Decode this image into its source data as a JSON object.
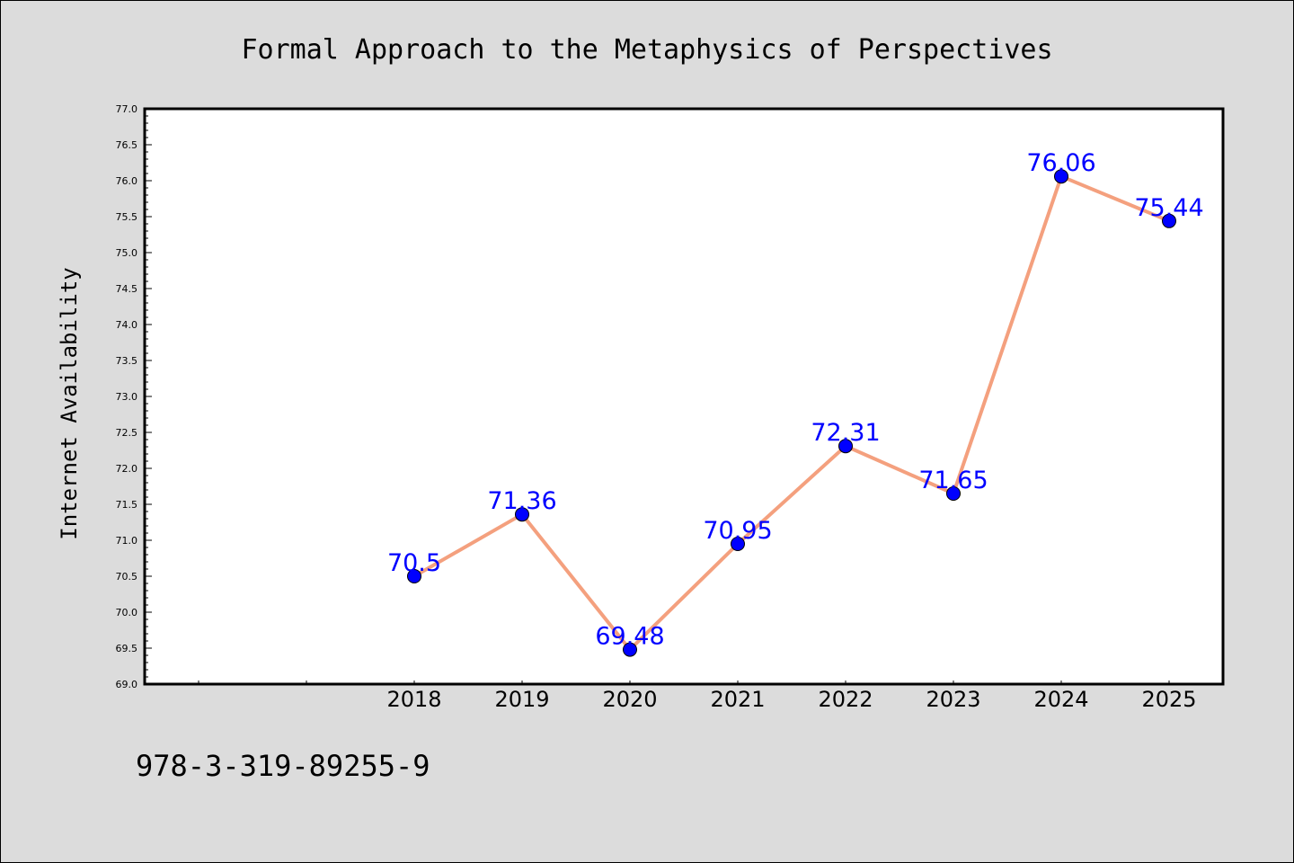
{
  "chart_data": {
    "type": "line",
    "title": "Formal Approach to the Metaphysics of Perspectives",
    "xlabel": "",
    "ylabel": "Internet Availability",
    "categories": [
      "2018",
      "2019",
      "2020",
      "2021",
      "2022",
      "2023",
      "2024",
      "2025"
    ],
    "series": [
      {
        "values": [
          70.5,
          71.36,
          69.48,
          70.95,
          72.31,
          71.65,
          76.06,
          75.44
        ]
      }
    ],
    "data_labels": [
      "70.5",
      "71.36",
      "69.48",
      "70.95",
      "72.31",
      "71.65",
      "76.06",
      "75.44"
    ],
    "ylim": [
      69.0,
      77.0
    ],
    "yticks": [
      "69.0",
      "69.5",
      "70.0",
      "70.5",
      "71.0",
      "71.5",
      "72.0",
      "72.5",
      "73.0",
      "73.5",
      "74.0",
      "74.5",
      "75.0",
      "75.5",
      "76.0",
      "76.5",
      "77.0"
    ],
    "grid": false,
    "legend": "none",
    "colors": {
      "line": "#f4a07e",
      "marker": "#0000ff",
      "label": "#0000ff",
      "plot_background": "#ffffff",
      "figure_background": "#dcdcdc"
    }
  },
  "footer": {
    "code": "978-3-319-89255-9"
  }
}
